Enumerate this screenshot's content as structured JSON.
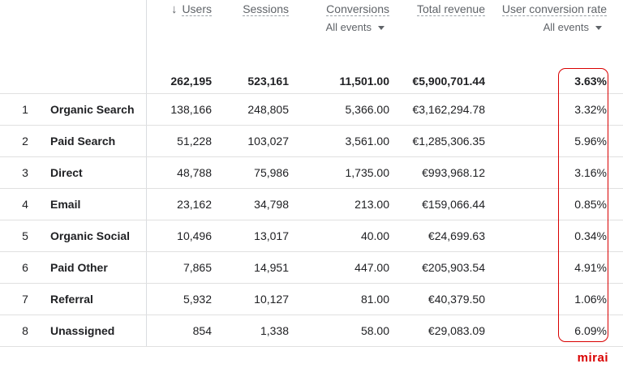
{
  "table": {
    "headers": [
      {
        "label": "Users"
      },
      {
        "label": "Sessions"
      },
      {
        "label": "Conversions",
        "filter": "All events"
      },
      {
        "label": "Total revenue"
      },
      {
        "label": "User conversion rate",
        "filter": "All events"
      }
    ],
    "totals": [
      "262,195",
      "523,161",
      "11,501.00",
      "€5,900,701.44",
      "3.63%"
    ],
    "rows": [
      [
        "1",
        "Organic Search",
        "138,166",
        "248,805",
        "5,366.00",
        "€3,162,294.78",
        "3.32%"
      ],
      [
        "2",
        "Paid Search",
        "51,228",
        "103,027",
        "3,561.00",
        "€1,285,306.35",
        "5.96%"
      ],
      [
        "3",
        "Direct",
        "48,788",
        "75,986",
        "1,735.00",
        "€993,968.12",
        "3.16%"
      ],
      [
        "4",
        "Email",
        "23,162",
        "34,798",
        "213.00",
        "€159,066.44",
        "0.85%"
      ],
      [
        "5",
        "Organic Social",
        "10,496",
        "13,017",
        "40.00",
        "€24,699.63",
        "0.34%"
      ],
      [
        "6",
        "Paid Other",
        "7,865",
        "14,951",
        "447.00",
        "€205,903.54",
        "4.91%"
      ],
      [
        "7",
        "Referral",
        "5,932",
        "10,127",
        "81.00",
        "€40,379.50",
        "1.06%"
      ],
      [
        "8",
        "Unassigned",
        "854",
        "1,338",
        "58.00",
        "€29,083.09",
        "6.09%"
      ]
    ]
  },
  "watermark": "mirai"
}
